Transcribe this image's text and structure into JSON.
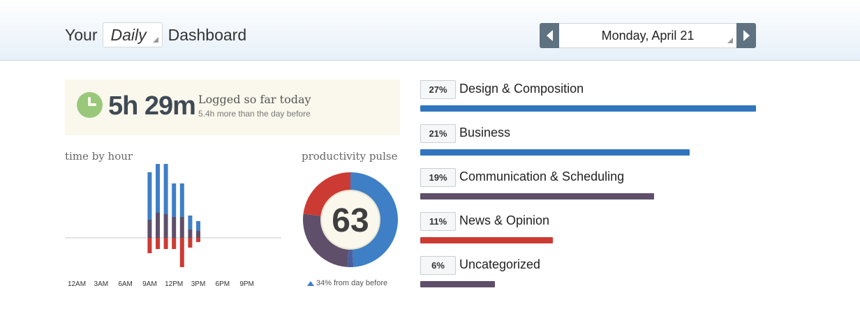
{
  "header": {
    "title_prefix": "Your",
    "period": "Daily",
    "title_suffix": "Dashboard",
    "date": "Monday, April 21"
  },
  "summary": {
    "time": "5h 29m",
    "label": "Logged so far today",
    "sub": "5.4h more than the day before"
  },
  "hour_chart": {
    "title": "time by hour",
    "x_ticks": [
      "12AM",
      "3AM",
      "6AM",
      "9AM",
      "12PM",
      "3PM",
      "6PM",
      "9PM"
    ]
  },
  "chart_data": [
    {
      "type": "bar",
      "title": "time by hour",
      "x_ticks": [
        "12AM",
        "3AM",
        "6AM",
        "9AM",
        "12PM",
        "3PM",
        "6PM",
        "9PM"
      ],
      "x": [
        9,
        10,
        11,
        12,
        13,
        14,
        15
      ],
      "series": [
        {
          "name": "",
          "color": "#3e7fc6",
          "values": [
            68,
            78,
            78,
            48,
            48,
            20,
            14
          ]
        },
        {
          "name": "",
          "color": "#5f4f6b",
          "values": [
            26,
            36,
            34,
            30,
            30,
            12,
            10
          ]
        },
        {
          "name": "",
          "color": "#cc3b33",
          "values": [
            -22,
            -16,
            -16,
            -16,
            -42,
            -14,
            -6
          ]
        }
      ],
      "ylim": [
        -50,
        110
      ],
      "grid": false
    },
    {
      "type": "pie",
      "title": "productivity pulse",
      "center_value": "63",
      "slices": [
        {
          "value": 49,
          "color": "#3e7fc6"
        },
        {
          "value": 2,
          "color": "#4a5f9e"
        },
        {
          "value": 26,
          "color": "#5f4f6b"
        },
        {
          "value": 23,
          "color": "#cc3b33"
        }
      ]
    }
  ],
  "pulse": {
    "title": "productivity pulse",
    "value": "63",
    "note": "34% from day before"
  },
  "categories": [
    {
      "pct": "27%",
      "name": "Design & Composition",
      "fraction": 1.0,
      "color": "#3175be"
    },
    {
      "pct": "21%",
      "name": "Business",
      "fraction": 0.802,
      "color": "#3175be"
    },
    {
      "pct": "19%",
      "name": "Communication & Scheduling",
      "fraction": 0.696,
      "color": "#5f4f6b"
    },
    {
      "pct": "11%",
      "name": "News & Opinion",
      "fraction": 0.395,
      "color": "#cc3b33"
    },
    {
      "pct": "6%",
      "name": "Uncategorized",
      "fraction": 0.222,
      "color": "#5f4f6b"
    }
  ]
}
